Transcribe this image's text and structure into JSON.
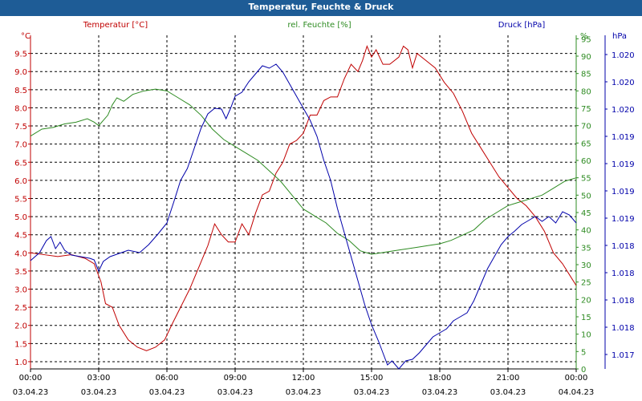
{
  "window": {
    "title": "Temperatur, Feuchte & Druck"
  },
  "chart_data": {
    "type": "line",
    "title": "Temperatur, Feuchte & Druck",
    "x_label_times": [
      "00:00",
      "03:00",
      "06:00",
      "09:00",
      "12:00",
      "15:00",
      "18:00",
      "21:00",
      "00:00"
    ],
    "x_label_dates": [
      "03.04.23",
      "03.04.23",
      "03.04.23",
      "03.04.23",
      "03.04.23",
      "03.04.23",
      "03.04.23",
      "03.04.23",
      "04.04.23"
    ],
    "x_range_hours": [
      0,
      24
    ],
    "grid": true,
    "axes": {
      "temperature": {
        "unit": "°C",
        "range": [
          0.8,
          10.0
        ],
        "ticks": [
          "1.0",
          "1.5",
          "2.0",
          "2.5",
          "3.0",
          "3.5",
          "4.0",
          "4.5",
          "5.0",
          "5.5",
          "6.0",
          "6.5",
          "7.0",
          "7.5",
          "8.0",
          "8.5",
          "9.0",
          "9.5"
        ],
        "tick_values": [
          1.0,
          1.5,
          2.0,
          2.5,
          3.0,
          3.5,
          4.0,
          4.5,
          5.0,
          5.5,
          6.0,
          6.5,
          7.0,
          7.5,
          8.0,
          8.5,
          9.0,
          9.5
        ],
        "color": "#c00000"
      },
      "humidity": {
        "unit": "%",
        "range": [
          0,
          96
        ],
        "ticks": [
          "0",
          "5",
          "10",
          "15",
          "20",
          "25",
          "30",
          "35",
          "40",
          "45",
          "50",
          "55",
          "60",
          "65",
          "70",
          "75",
          "80",
          "85",
          "90",
          "95"
        ],
        "tick_values": [
          0,
          5,
          10,
          15,
          20,
          25,
          30,
          35,
          40,
          45,
          50,
          55,
          60,
          65,
          70,
          75,
          80,
          85,
          90,
          95
        ],
        "color": "#2e8b22"
      },
      "pressure": {
        "unit": "hPa",
        "range_pixel_mapped": true,
        "ticks": [
          "1.020",
          "1.020",
          "1.020",
          "1.019",
          "1.019",
          "1.019",
          "1.019",
          "1.018",
          "1.018",
          "1.018",
          "1.018",
          "1.017"
        ],
        "color": "#0000aa"
      }
    },
    "legend": {
      "temperature": "Temperatur [°C]",
      "humidity": "rel. Feuchte [%]",
      "pressure": "Druck [hPa]",
      "pressure_unit": "hPa"
    },
    "series": [
      {
        "name": "Temperatur [°C]",
        "axis": "temperature",
        "color": "#c00000",
        "points": [
          [
            0,
            4.0
          ],
          [
            0.6,
            3.95
          ],
          [
            1.2,
            3.9
          ],
          [
            1.8,
            3.95
          ],
          [
            2.4,
            3.85
          ],
          [
            2.8,
            3.7
          ],
          [
            3.1,
            3.2
          ],
          [
            3.3,
            2.6
          ],
          [
            3.6,
            2.5
          ],
          [
            3.9,
            2.0
          ],
          [
            4.3,
            1.6
          ],
          [
            4.7,
            1.4
          ],
          [
            5.1,
            1.3
          ],
          [
            5.5,
            1.4
          ],
          [
            5.9,
            1.6
          ],
          [
            6.2,
            2.0
          ],
          [
            6.6,
            2.5
          ],
          [
            7.0,
            3.0
          ],
          [
            7.4,
            3.6
          ],
          [
            7.8,
            4.2
          ],
          [
            8.1,
            4.8
          ],
          [
            8.4,
            4.5
          ],
          [
            8.7,
            4.3
          ],
          [
            9.0,
            4.3
          ],
          [
            9.3,
            4.8
          ],
          [
            9.6,
            4.5
          ],
          [
            9.9,
            5.1
          ],
          [
            10.2,
            5.6
          ],
          [
            10.5,
            5.7
          ],
          [
            10.8,
            6.2
          ],
          [
            11.1,
            6.5
          ],
          [
            11.4,
            7.0
          ],
          [
            11.7,
            7.1
          ],
          [
            12.0,
            7.3
          ],
          [
            12.3,
            7.8
          ],
          [
            12.6,
            7.8
          ],
          [
            12.9,
            8.2
          ],
          [
            13.2,
            8.3
          ],
          [
            13.5,
            8.3
          ],
          [
            13.8,
            8.8
          ],
          [
            14.1,
            9.2
          ],
          [
            14.4,
            9.0
          ],
          [
            14.6,
            9.3
          ],
          [
            14.8,
            9.7
          ],
          [
            15.0,
            9.4
          ],
          [
            15.2,
            9.6
          ],
          [
            15.5,
            9.2
          ],
          [
            15.8,
            9.2
          ],
          [
            16.2,
            9.4
          ],
          [
            16.4,
            9.7
          ],
          [
            16.6,
            9.6
          ],
          [
            16.8,
            9.1
          ],
          [
            17.0,
            9.5
          ],
          [
            17.4,
            9.3
          ],
          [
            17.8,
            9.1
          ],
          [
            18.2,
            8.7
          ],
          [
            18.6,
            8.4
          ],
          [
            19.0,
            7.9
          ],
          [
            19.4,
            7.3
          ],
          [
            19.8,
            6.9
          ],
          [
            20.2,
            6.5
          ],
          [
            20.6,
            6.1
          ],
          [
            21.0,
            5.8
          ],
          [
            21.4,
            5.5
          ],
          [
            21.8,
            5.3
          ],
          [
            22.2,
            5.0
          ],
          [
            22.6,
            4.6
          ],
          [
            23.0,
            4.0
          ],
          [
            23.4,
            3.7
          ],
          [
            23.7,
            3.4
          ],
          [
            24.0,
            3.1
          ]
        ]
      },
      {
        "name": "rel. Feuchte [%]",
        "axis": "humidity",
        "color": "#2e8b22",
        "points": [
          [
            0,
            67
          ],
          [
            0.5,
            69
          ],
          [
            1.0,
            69.5
          ],
          [
            1.5,
            70.5
          ],
          [
            2.0,
            71
          ],
          [
            2.5,
            72
          ],
          [
            2.8,
            71
          ],
          [
            3.0,
            70
          ],
          [
            3.2,
            71.5
          ],
          [
            3.4,
            73
          ],
          [
            3.6,
            76
          ],
          [
            3.8,
            78
          ],
          [
            4.1,
            77
          ],
          [
            4.5,
            79
          ],
          [
            5.0,
            80
          ],
          [
            5.5,
            80.5
          ],
          [
            6.0,
            80
          ],
          [
            6.5,
            78
          ],
          [
            7.0,
            76
          ],
          [
            7.5,
            73
          ],
          [
            8.0,
            69
          ],
          [
            8.5,
            66
          ],
          [
            9.0,
            64
          ],
          [
            9.5,
            62
          ],
          [
            10.0,
            60
          ],
          [
            10.5,
            57
          ],
          [
            11.0,
            54
          ],
          [
            11.5,
            50
          ],
          [
            12.0,
            46
          ],
          [
            12.5,
            44
          ],
          [
            13.0,
            42
          ],
          [
            13.5,
            39
          ],
          [
            14.0,
            37
          ],
          [
            14.5,
            34
          ],
          [
            15.0,
            33
          ],
          [
            15.5,
            33.5
          ],
          [
            16.0,
            34
          ],
          [
            16.5,
            34.5
          ],
          [
            17.0,
            35
          ],
          [
            17.5,
            35.5
          ],
          [
            18.0,
            36
          ],
          [
            18.5,
            37
          ],
          [
            19.0,
            38.5
          ],
          [
            19.5,
            40
          ],
          [
            20.0,
            43
          ],
          [
            20.5,
            45
          ],
          [
            21.0,
            47
          ],
          [
            21.5,
            48
          ],
          [
            22.0,
            49
          ],
          [
            22.5,
            50
          ],
          [
            23.0,
            52
          ],
          [
            23.5,
            54
          ],
          [
            24.0,
            55
          ]
        ]
      },
      {
        "name": "Druck [hPa]",
        "axis": "pressure",
        "color": "#0000aa",
        "points_pixel_space": true,
        "points": [
          [
            0,
            305
          ],
          [
            0.4,
            295
          ],
          [
            0.7,
            280
          ],
          [
            0.9,
            275
          ],
          [
            1.1,
            290
          ],
          [
            1.3,
            282
          ],
          [
            1.5,
            292
          ],
          [
            1.8,
            298
          ],
          [
            2.2,
            300
          ],
          [
            2.6,
            302
          ],
          [
            2.8,
            304
          ],
          [
            3.0,
            318
          ],
          [
            3.2,
            306
          ],
          [
            3.5,
            300
          ],
          [
            3.9,
            296
          ],
          [
            4.3,
            292
          ],
          [
            4.8,
            295
          ],
          [
            5.2,
            285
          ],
          [
            5.6,
            272
          ],
          [
            6.0,
            258
          ],
          [
            6.3,
            232
          ],
          [
            6.6,
            205
          ],
          [
            6.9,
            190
          ],
          [
            7.2,
            165
          ],
          [
            7.5,
            140
          ],
          [
            7.8,
            122
          ],
          [
            8.1,
            115
          ],
          [
            8.4,
            116
          ],
          [
            8.6,
            128
          ],
          [
            8.8,
            115
          ],
          [
            9.0,
            100
          ],
          [
            9.3,
            95
          ],
          [
            9.6,
            82
          ],
          [
            9.9,
            72
          ],
          [
            10.2,
            62
          ],
          [
            10.5,
            65
          ],
          [
            10.8,
            60
          ],
          [
            11.1,
            70
          ],
          [
            11.4,
            85
          ],
          [
            11.7,
            100
          ],
          [
            12.0,
            115
          ],
          [
            12.3,
            130
          ],
          [
            12.6,
            150
          ],
          [
            12.9,
            180
          ],
          [
            13.2,
            205
          ],
          [
            13.5,
            240
          ],
          [
            13.8,
            270
          ],
          [
            14.1,
            300
          ],
          [
            14.4,
            330
          ],
          [
            14.7,
            360
          ],
          [
            15.0,
            385
          ],
          [
            15.3,
            405
          ],
          [
            15.5,
            420
          ],
          [
            15.7,
            435
          ],
          [
            15.9,
            430
          ],
          [
            16.2,
            440
          ],
          [
            16.5,
            430
          ],
          [
            16.8,
            428
          ],
          [
            17.1,
            420
          ],
          [
            17.4,
            410
          ],
          [
            17.7,
            400
          ],
          [
            18.0,
            395
          ],
          [
            18.3,
            390
          ],
          [
            18.6,
            380
          ],
          [
            18.9,
            375
          ],
          [
            19.2,
            370
          ],
          [
            19.5,
            355
          ],
          [
            19.8,
            335
          ],
          [
            20.1,
            315
          ],
          [
            20.4,
            300
          ],
          [
            20.7,
            285
          ],
          [
            21.0,
            275
          ],
          [
            21.3,
            268
          ],
          [
            21.6,
            260
          ],
          [
            21.9,
            255
          ],
          [
            22.2,
            250
          ],
          [
            22.5,
            256
          ],
          [
            22.8,
            250
          ],
          [
            23.1,
            258
          ],
          [
            23.4,
            244
          ],
          [
            23.7,
            248
          ],
          [
            24.0,
            258
          ]
        ]
      }
    ]
  }
}
